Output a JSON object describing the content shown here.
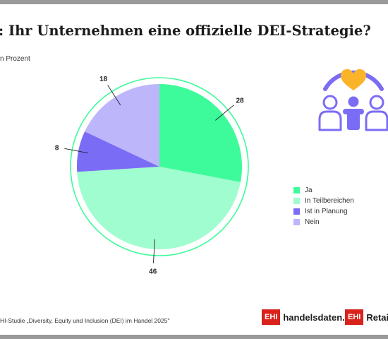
{
  "title": ": Ihr Unternehmen eine offizielle DEI-Strategie?",
  "subtitle": "n Prozent",
  "source": "HI-Studie „Diversity, Equity und Inclusion (DEI) im Handel 2025\"",
  "logos": {
    "logo1_box": "EHI",
    "logo1_text": "handelsdaten.de",
    "logo2_box": "EHI",
    "logo2_text": "Retail I"
  },
  "icons": {
    "illustration": "people-heart-icon"
  },
  "colors": {
    "ring": "#3dfb9a",
    "ja": "#3dfb9a",
    "teilbereiche": "#a0fdcf",
    "planung": "#7b6cf6",
    "nein": "#bdb6fb",
    "heart": "#f9b42a",
    "icon_purple": "#7b6cf6"
  },
  "chart_data": {
    "type": "pie",
    "title": "",
    "categories": [
      "Ja",
      "In Teilbereichen",
      "Ist in Planung",
      "Nein"
    ],
    "values": [
      28,
      46,
      8,
      18
    ],
    "data_labels": [
      "28",
      "46",
      "8",
      "18"
    ],
    "legend_position": "right",
    "start": "top",
    "direction": "clockwise"
  }
}
